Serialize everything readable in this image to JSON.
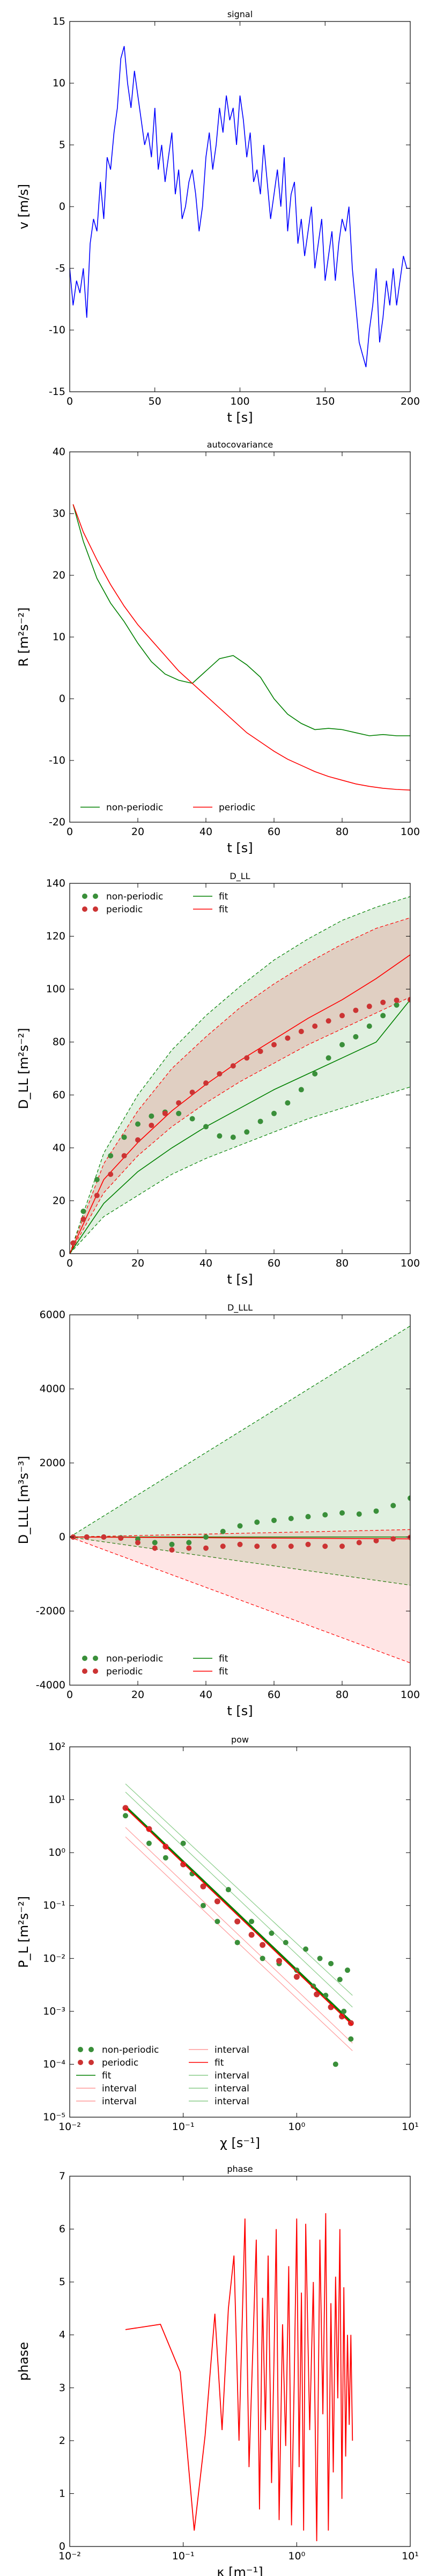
{
  "figure": {
    "titles": [
      "signal",
      "autocovariance",
      "D_LL",
      "D_LLL",
      "pow",
      "phase"
    ]
  },
  "chart_data": [
    {
      "type": "line",
      "title": "signal",
      "xlabel": "t [s]",
      "ylabel": "v [m/s]",
      "xlim": [
        0,
        200
      ],
      "ylim": [
        -15,
        15
      ],
      "xticks": [
        0,
        50,
        100,
        150,
        200
      ],
      "yticks": [
        -15,
        -10,
        -5,
        0,
        5,
        10,
        15
      ],
      "series": [
        {
          "color": "#0000ff",
          "x": [
            0,
            2,
            4,
            6,
            8,
            10,
            12,
            14,
            16,
            18,
            20,
            22,
            24,
            26,
            28,
            30,
            32,
            34,
            36,
            38,
            40,
            42,
            44,
            46,
            48,
            50,
            52,
            54,
            56,
            58,
            60,
            62,
            64,
            66,
            68,
            70,
            72,
            74,
            76,
            78,
            80,
            82,
            84,
            86,
            88,
            90,
            92,
            94,
            96,
            98,
            100,
            102,
            104,
            106,
            108,
            110,
            112,
            114,
            116,
            118,
            120,
            122,
            124,
            126,
            128,
            130,
            132,
            134,
            136,
            138,
            140,
            142,
            144,
            146,
            148,
            150,
            152,
            154,
            156,
            158,
            160,
            162,
            164,
            166,
            168,
            170,
            172,
            174,
            176,
            178,
            180,
            182,
            184,
            186,
            188,
            190,
            192,
            194,
            196,
            198,
            200
          ],
          "values": [
            -5,
            -8,
            -6,
            -7,
            -5,
            -9,
            -3,
            -1,
            -2,
            2,
            -1,
            4,
            3,
            6,
            8,
            12,
            13,
            10,
            8,
            11,
            9,
            7,
            5,
            6,
            4,
            8,
            3,
            5,
            2,
            4,
            6,
            1,
            3,
            -1,
            0,
            2,
            3,
            1,
            -2,
            0,
            4,
            6,
            3,
            5,
            8,
            6,
            9,
            7,
            8,
            5,
            9,
            7,
            4,
            6,
            2,
            3,
            1,
            5,
            2,
            -1,
            1,
            3,
            0,
            4,
            -2,
            1,
            2,
            -3,
            -1,
            -4,
            -2,
            0,
            -5,
            -3,
            -1,
            -6,
            -4,
            -2,
            -6,
            -3,
            -1,
            -2,
            0,
            -5,
            -8,
            -11,
            -12,
            -13,
            -10,
            -8,
            -5,
            -11,
            -9,
            -6,
            -8,
            -5,
            -8,
            -6,
            -4,
            -5,
            -5
          ]
        }
      ]
    },
    {
      "type": "line",
      "title": "autocovariance",
      "xlabel": "t [s]",
      "ylabel": "R [m²s⁻²]",
      "xlim": [
        0,
        100
      ],
      "ylim": [
        -20,
        40
      ],
      "xticks": [
        0,
        20,
        40,
        60,
        80,
        100
      ],
      "yticks": [
        -20,
        -10,
        0,
        10,
        20,
        30,
        40
      ],
      "legend": "lower-left",
      "series": [
        {
          "name": "non-periodic",
          "color": "#008000",
          "x": [
            1,
            4,
            8,
            12,
            16,
            20,
            24,
            28,
            32,
            36,
            40,
            44,
            48,
            52,
            56,
            60,
            64,
            68,
            72,
            76,
            80,
            84,
            88,
            92,
            96,
            100
          ],
          "values": [
            31.5,
            25.5,
            19.5,
            15.5,
            12.5,
            9,
            6,
            4,
            3,
            2.5,
            4.5,
            6.5,
            7,
            5.5,
            3.5,
            0,
            -2.5,
            -4,
            -5,
            -4.8,
            -5,
            -5.5,
            -6,
            -5.8,
            -6,
            -6
          ]
        },
        {
          "name": "periodic",
          "color": "#ff0000",
          "x": [
            1,
            4,
            8,
            12,
            16,
            20,
            24,
            28,
            32,
            36,
            40,
            44,
            48,
            52,
            56,
            60,
            64,
            68,
            72,
            76,
            80,
            84,
            88,
            92,
            96,
            100
          ],
          "values": [
            31.5,
            27,
            22.5,
            18.5,
            15,
            12,
            9.5,
            7,
            4.5,
            2.5,
            0.5,
            -1.5,
            -3.5,
            -5.5,
            -7,
            -8.5,
            -9.8,
            -10.8,
            -11.8,
            -12.6,
            -13.2,
            -13.8,
            -14.2,
            -14.5,
            -14.7,
            -14.8
          ]
        }
      ]
    },
    {
      "type": "scatter",
      "title": "D_LL",
      "xlabel": "t [s]",
      "ylabel": "D_LL [m²s⁻²]",
      "xlim": [
        0,
        100
      ],
      "ylim": [
        0,
        140
      ],
      "xticks": [
        0,
        20,
        40,
        60,
        80,
        100
      ],
      "yticks": [
        0,
        20,
        40,
        60,
        80,
        100,
        120,
        140
      ],
      "legend": "top-left",
      "series": [
        {
          "name": "non-periodic",
          "color": "#3a8f3a",
          "x": [
            1,
            4,
            8,
            12,
            16,
            20,
            24,
            28,
            32,
            36,
            40,
            44,
            48,
            52,
            56,
            60,
            64,
            68,
            72,
            76,
            80,
            84,
            88,
            92,
            96,
            100
          ],
          "values": [
            4,
            16,
            28,
            37,
            44,
            49,
            52,
            53.5,
            53,
            51,
            48,
            44.5,
            44,
            46,
            50,
            53,
            57,
            62,
            68,
            74,
            79,
            82,
            86,
            90,
            94,
            96
          ]
        },
        {
          "name": "periodic",
          "color": "#cc3333",
          "x": [
            1,
            4,
            8,
            12,
            16,
            20,
            24,
            28,
            32,
            36,
            40,
            44,
            48,
            52,
            56,
            60,
            64,
            68,
            72,
            76,
            80,
            84,
            88,
            92,
            96,
            100
          ],
          "values": [
            4,
            13,
            22,
            30,
            37,
            43,
            48.5,
            53,
            57,
            61,
            64.5,
            68,
            71,
            74,
            76.5,
            79,
            81.5,
            84,
            86,
            88,
            90,
            92,
            93.5,
            95,
            95.8,
            96
          ]
        },
        {
          "name": "fit",
          "color": "#008000",
          "x": [
            0,
            10,
            20,
            30,
            40,
            50,
            60,
            70,
            80,
            90,
            100
          ],
          "values": [
            0,
            19,
            31,
            40,
            48,
            55,
            62,
            68,
            74,
            80,
            96
          ]
        },
        {
          "name": "fit",
          "color": "#ff0000",
          "x": [
            0,
            10,
            20,
            30,
            40,
            50,
            60,
            70,
            80,
            90,
            100
          ],
          "values": [
            0,
            28,
            42,
            54,
            64,
            73,
            81,
            89,
            96,
            104,
            113
          ]
        }
      ]
    },
    {
      "type": "scatter",
      "title": "D_LLL",
      "xlabel": "t [s]",
      "ylabel": "D_LLL [m³s⁻³]",
      "xlim": [
        0,
        100
      ],
      "ylim": [
        -4000,
        6000
      ],
      "xticks": [
        0,
        20,
        40,
        60,
        80,
        100
      ],
      "yticks": [
        -4000,
        -2000,
        0,
        2000,
        4000,
        6000
      ],
      "legend": "lower-left",
      "series": [
        {
          "name": "non-periodic",
          "color": "#3a8f3a",
          "x": [
            1,
            5,
            10,
            15,
            20,
            25,
            30,
            35,
            40,
            45,
            50,
            55,
            60,
            65,
            70,
            75,
            80,
            85,
            90,
            95,
            100
          ],
          "values": [
            0,
            0,
            0,
            -20,
            -60,
            -150,
            -200,
            -150,
            0,
            150,
            300,
            400,
            450,
            500,
            550,
            600,
            650,
            620,
            700,
            850,
            1050
          ]
        },
        {
          "name": "periodic",
          "color": "#cc3333",
          "x": [
            1,
            5,
            10,
            15,
            20,
            25,
            30,
            35,
            40,
            45,
            50,
            55,
            60,
            65,
            70,
            75,
            80,
            85,
            90,
            95,
            100
          ],
          "values": [
            0,
            0,
            0,
            -30,
            -150,
            -300,
            -350,
            -300,
            -300,
            -250,
            -200,
            -250,
            -250,
            -250,
            -200,
            -250,
            -250,
            -150,
            -100,
            -50,
            -10
          ]
        },
        {
          "name": "fit",
          "color": "#008000",
          "x": [
            0,
            100
          ],
          "values": [
            0,
            0
          ]
        },
        {
          "name": "fit",
          "color": "#ff0000",
          "x": [
            0,
            100
          ],
          "values": [
            0,
            -50
          ]
        }
      ]
    },
    {
      "type": "scatter",
      "title": "pow",
      "xlabel": "χ [s⁻¹]",
      "ylabel": "P_L [m²s⁻²]",
      "xscale": "log",
      "yscale": "log",
      "xlim": [
        0.01,
        10
      ],
      "ylim": [
        1e-05,
        100
      ],
      "xticks": [
        "10⁻²",
        "10⁻¹",
        "10⁰",
        "10¹"
      ],
      "yticks": [
        "10⁻⁵",
        "10⁻⁴",
        "10⁻³",
        "10⁻²",
        "10⁻¹",
        "10⁰",
        "10¹",
        "10²"
      ],
      "legend": "lower-left",
      "legend_entries": [
        "non-periodic",
        "periodic",
        "fit",
        "interval",
        "interval",
        "interval",
        "fit",
        "interval",
        "interval",
        "interval"
      ],
      "series": [
        {
          "name": "non-periodic",
          "color": "#3a8f3a",
          "x": [
            0.031,
            0.05,
            0.07,
            0.1,
            0.12,
            0.15,
            0.2,
            0.25,
            0.3,
            0.4,
            0.5,
            0.6,
            0.7,
            0.8,
            1.0,
            1.2,
            1.4,
            1.6,
            1.8,
            2.0,
            2.2,
            2.4,
            2.6,
            2.8,
            3.0
          ],
          "values": [
            5,
            1.5,
            0.8,
            1.5,
            0.4,
            0.1,
            0.05,
            0.2,
            0.02,
            0.05,
            0.01,
            0.03,
            0.008,
            0.02,
            0.006,
            0.015,
            0.003,
            0.01,
            0.002,
            0.008,
            0.0001,
            0.004,
            0.001,
            0.006,
            0.0003
          ]
        },
        {
          "name": "periodic",
          "color": "#cc3333",
          "x": [
            0.031,
            0.05,
            0.07,
            0.1,
            0.15,
            0.2,
            0.3,
            0.4,
            0.5,
            0.7,
            1.0,
            1.5,
            2.0,
            2.5,
            3.0
          ],
          "values": [
            7,
            2.8,
            1.3,
            0.6,
            0.23,
            0.12,
            0.05,
            0.028,
            0.018,
            0.009,
            0.0045,
            0.0021,
            0.0012,
            0.0008,
            0.0006
          ]
        },
        {
          "name": "fit",
          "color": "#008000",
          "x": [
            0.031,
            3.1
          ],
          "values": [
            7.5,
            0.0006
          ]
        },
        {
          "name": "fit",
          "color": "#ff0000",
          "x": [
            0.031,
            3.1
          ],
          "values": [
            7.0,
            0.00055
          ]
        }
      ]
    },
    {
      "type": "line",
      "title": "phase",
      "xlabel": "κ [m⁻¹]",
      "ylabel": "phase",
      "xscale": "log",
      "xlim": [
        0.01,
        10
      ],
      "ylim": [
        0,
        7
      ],
      "xticks": [
        "10⁻²",
        "10⁻¹",
        "10⁰",
        "10¹"
      ],
      "yticks": [
        0,
        1,
        2,
        3,
        4,
        5,
        6,
        7
      ],
      "series": [
        {
          "color": "#ff0000",
          "x": [
            0.031,
            0.063,
            0.094,
            0.125,
            0.156,
            0.19,
            0.22,
            0.25,
            0.28,
            0.31,
            0.35,
            0.38,
            0.41,
            0.44,
            0.47,
            0.5,
            0.53,
            0.56,
            0.6,
            0.63,
            0.66,
            0.7,
            0.75,
            0.8,
            0.85,
            0.9,
            0.95,
            1.0,
            1.05,
            1.1,
            1.15,
            1.2,
            1.3,
            1.4,
            1.5,
            1.6,
            1.7,
            1.8,
            1.9,
            2.0,
            2.1,
            2.2,
            2.3,
            2.4,
            2.5,
            2.6,
            2.7,
            2.8,
            2.9,
            3.0,
            3.1
          ],
          "values": [
            4.1,
            4.2,
            3.3,
            0.3,
            2.1,
            4.4,
            2.2,
            4.5,
            5.5,
            2.0,
            6.2,
            1.5,
            3.7,
            5.8,
            0.7,
            4.7,
            2.2,
            5.5,
            1.2,
            3.5,
            6.0,
            0.5,
            4.2,
            1.9,
            5.3,
            0.4,
            3.1,
            6.2,
            1.5,
            4.8,
            0.3,
            6.1,
            2.2,
            5.0,
            0.1,
            5.8,
            2.5,
            6.3,
            0.3,
            4.6,
            1.4,
            5.1,
            2.8,
            6.0,
            0.9,
            4.9,
            1.7,
            4.0,
            2.3,
            4.0,
            2.0
          ]
        }
      ]
    }
  ]
}
